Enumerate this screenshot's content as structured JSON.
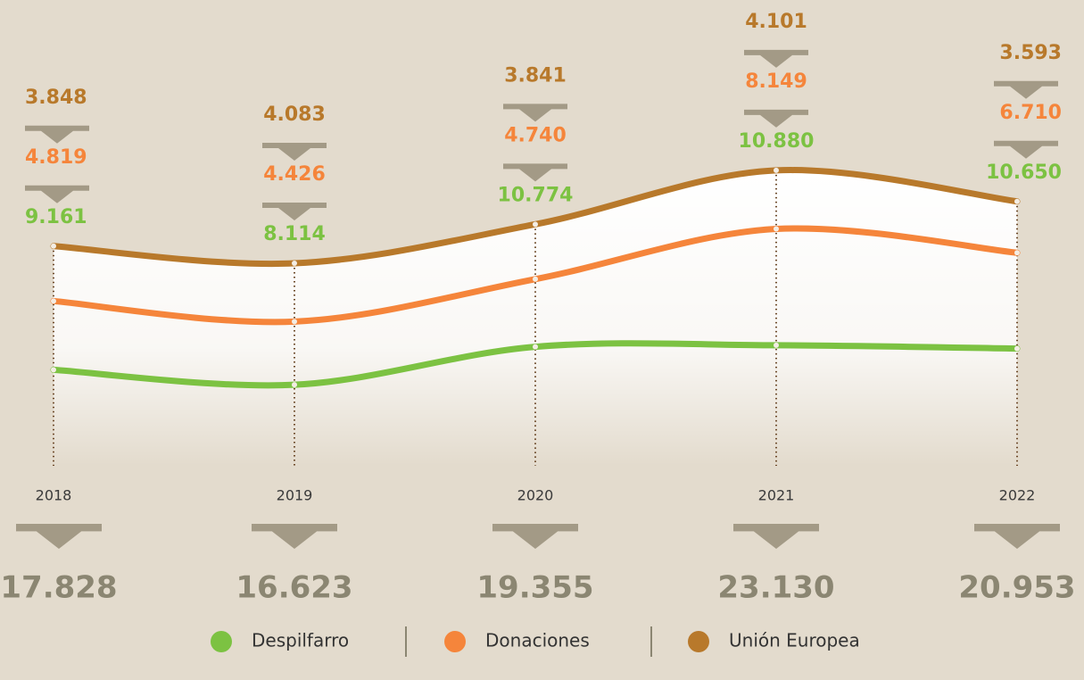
{
  "chart_data": {
    "type": "line",
    "stacked": true,
    "categories": [
      "2018",
      "2019",
      "2020",
      "2021",
      "2022"
    ],
    "series": [
      {
        "name": "Despilfarro",
        "color": "#7cc242",
        "values": [
          9161,
          8114,
          10774,
          10880,
          10650
        ],
        "value_labels": [
          "9.161",
          "8.114",
          "10.774",
          "10.880",
          "10.650"
        ]
      },
      {
        "name": "Donaciones",
        "color": "#f5853b",
        "values": [
          4819,
          4426,
          4740,
          8149,
          6710
        ],
        "value_labels": [
          "4.819",
          "4.426",
          "4.740",
          "8.149",
          "6.710"
        ]
      },
      {
        "name": "Unión Europea",
        "color": "#b8792b",
        "values": [
          3848,
          4083,
          3841,
          4101,
          3593
        ],
        "value_labels": [
          "3.848",
          "4.083",
          "3.841",
          "4.101",
          "3.593"
        ]
      }
    ],
    "totals": {
      "values": [
        17828,
        16623,
        19355,
        23130,
        20953
      ],
      "value_labels": [
        "17.828",
        "16.623",
        "19.355",
        "23.130",
        "20.953"
      ],
      "color": "#8b8672"
    }
  }
}
